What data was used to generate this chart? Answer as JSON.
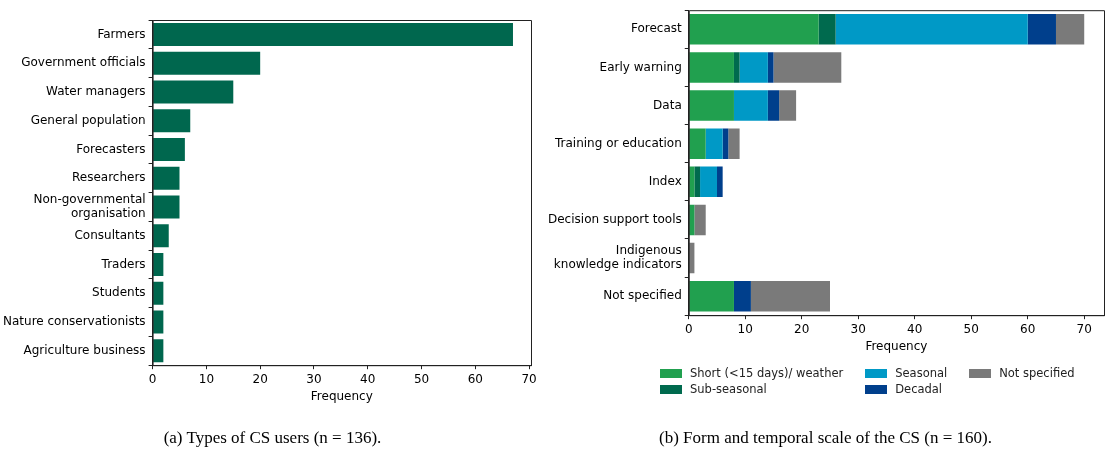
{
  "chart_data": [
    {
      "type": "bar",
      "orientation": "horizontal",
      "categories": [
        "Farmers",
        "Government officials",
        "Water managers",
        "General population",
        "Forecasters",
        "Researchers",
        "Non-governmental\norganisation",
        "Consultants",
        "Traders",
        "Students",
        "Nature conservationists",
        "Agriculture business"
      ],
      "values": [
        67,
        20,
        15,
        7,
        6,
        5,
        5,
        3,
        2,
        2,
        2,
        2
      ],
      "color": "#00674e",
      "xlabel": "Frequency",
      "xlim": [
        0,
        70.35
      ],
      "xticks": [
        0,
        10,
        20,
        30,
        40,
        50,
        60,
        70
      ],
      "grid": false,
      "legend": false,
      "annotations": [
        "(a) Types of CS users (n = 136)."
      ]
    },
    {
      "type": "bar",
      "orientation": "horizontal",
      "stacked": true,
      "categories": [
        "Forecast",
        "Early warning",
        "Data",
        "Training or education",
        "Index",
        "Decision support tools",
        "Indigenous\nknowledge indicators",
        "Not specified"
      ],
      "series": [
        {
          "name": "Short (<15 days)/ weather",
          "color": "#21a04f",
          "values": [
            23,
            8,
            8,
            3,
            1,
            1,
            0,
            8
          ]
        },
        {
          "name": "Sub-seasonal",
          "color": "#006a4e",
          "values": [
            3,
            1,
            0,
            0,
            1,
            0,
            0,
            0
          ]
        },
        {
          "name": "Seasonal",
          "color": "#0099c6",
          "values": [
            34,
            5,
            6,
            3,
            3,
            0,
            0,
            0
          ]
        },
        {
          "name": "Decadal",
          "color": "#003f8c",
          "values": [
            5,
            1,
            2,
            1,
            1,
            0,
            0,
            3
          ]
        },
        {
          "name": "Not specified",
          "color": "#7a7a7a",
          "values": [
            5,
            12,
            3,
            2,
            0,
            2,
            1,
            14
          ]
        }
      ],
      "xlabel": "Frequency",
      "xlim": [
        0,
        73.5
      ],
      "xticks": [
        0,
        10,
        20,
        30,
        40,
        50,
        60,
        70
      ],
      "grid": false,
      "legend": "bottom",
      "annotations": [
        "(b) Form and temporal scale of the CS (n = 160)."
      ]
    }
  ]
}
